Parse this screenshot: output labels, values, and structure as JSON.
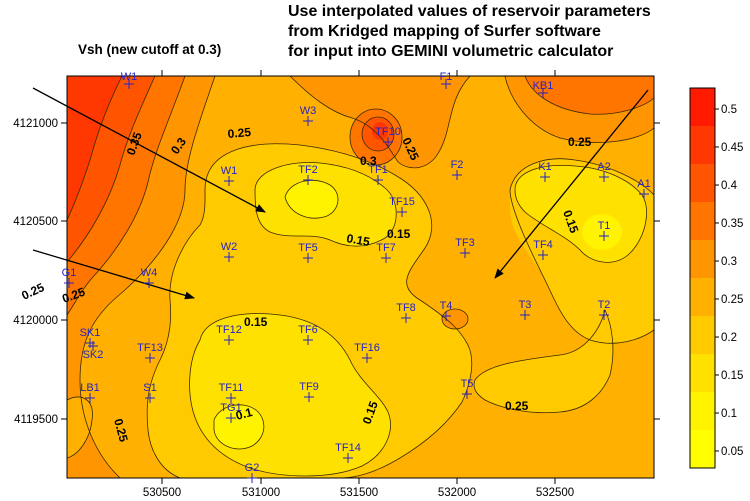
{
  "title_lines": [
    "Use interpolated values of reservoir parameters",
    "from Kridged mapping of Surfer software",
    "for input into GEMINI volumetric calculator"
  ],
  "subtitle": "Vsh  (new cutoff at 0.3)",
  "map": {
    "x_ticks": [
      "530500",
      "531000",
      "531500",
      "532000",
      "532500"
    ],
    "y_ticks": [
      "4121000",
      "4120500",
      "4120000",
      "4119500"
    ],
    "wells": [
      "W1",
      "F1",
      "KB1",
      "W3",
      "TF10",
      "TF2",
      "TF1",
      "F2",
      "K1",
      "A2",
      "A1",
      "W1",
      "TF15",
      "T1",
      "W2",
      "TF5",
      "TF7",
      "TF3",
      "TF4",
      "G1",
      "W4",
      "TF8",
      "T4",
      "T3",
      "T2",
      "SK1",
      "SK2",
      "TF12",
      "TF6",
      "TF13",
      "TF16",
      "LB1",
      "S1",
      "TF11",
      "TF9",
      "TG1",
      "T5",
      "TF14",
      "G2"
    ],
    "contour_labels": [
      "0.35",
      "0.3",
      "0.25",
      "0.25",
      "0.3",
      "0.25",
      "0.25",
      "0.15",
      "0.15",
      "0.25",
      "0.15",
      "0.1",
      "0.15",
      "0.25",
      "0.25",
      "0.15"
    ]
  },
  "legend": {
    "labels": [
      "0.5",
      "0.45",
      "0.4",
      "0.35",
      "0.3",
      "0.25",
      "0.2",
      "0.15",
      "0.1",
      "0.05"
    ],
    "colors": [
      "#ff1a00",
      "#ff3700",
      "#ff5500",
      "#ff7500",
      "#ff9500",
      "#ffb000",
      "#ffcb00",
      "#ffe100",
      "#fff300",
      "#ffff00"
    ]
  }
}
